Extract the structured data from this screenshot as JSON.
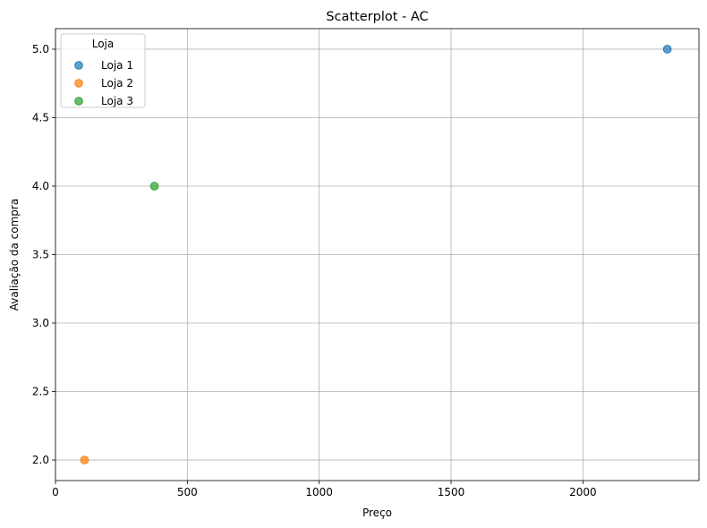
{
  "chart_data": {
    "type": "scatter",
    "title": "Scatterplot - AC",
    "xlabel": "Preço",
    "ylabel": "Avaliação da compra",
    "xlim": [
      0,
      2440
    ],
    "ylim": [
      1.85,
      5.15
    ],
    "xticks": [
      0,
      500,
      1000,
      1500,
      2000
    ],
    "xtick_labels": [
      "0",
      "500",
      "1000",
      "1500",
      "2000"
    ],
    "yticks": [
      2.0,
      2.5,
      3.0,
      3.5,
      4.0,
      4.5,
      5.0
    ],
    "ytick_labels": [
      "2.0",
      "2.5",
      "3.0",
      "3.5",
      "4.0",
      "4.5",
      "5.0"
    ],
    "grid": true,
    "legend": {
      "title": "Loja",
      "placement": "top-left"
    },
    "series": [
      {
        "name": "Loja 1",
        "color": "#1f77b4",
        "points": [
          {
            "x": 2320,
            "y": 5.0
          }
        ]
      },
      {
        "name": "Loja 2",
        "color": "#ff7f0e",
        "points": [
          {
            "x": 110,
            "y": 2.0
          }
        ]
      },
      {
        "name": "Loja 3",
        "color": "#2ca02c",
        "points": [
          {
            "x": 375,
            "y": 4.0
          }
        ]
      }
    ]
  }
}
